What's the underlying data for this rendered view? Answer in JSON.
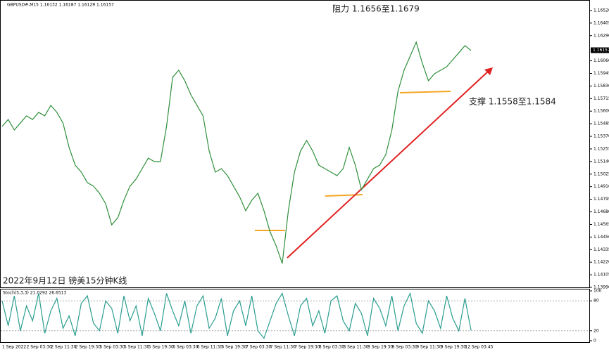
{
  "chart_data": [
    {
      "type": "line",
      "symbol_info": "GBPUSD#,M15 1.16132 1.16187 1.16129 1.16157",
      "annotations": [
        "阻力 1.1656至1.1679",
        "支撑 1.1558至1.1584",
        "2022年9月12日 镑美15分钟K线"
      ],
      "current_price": 1.16157,
      "categories": [
        "1 Sep 2022",
        null,
        null,
        null,
        "2 Sep 03:30",
        null,
        null,
        null,
        "2 Sep 11:30",
        null,
        null,
        null,
        "2 Sep 19:30",
        null,
        null,
        null,
        "5 Sep 03:30",
        null,
        null,
        null,
        "5 Sep 11:30",
        null,
        null,
        null,
        "5 Sep 19:30",
        null,
        null,
        null,
        "6 Sep 03:30",
        null,
        null,
        null,
        "6 Sep 11:30",
        null,
        null,
        null,
        "6 Sep 19:30",
        null,
        null,
        null,
        "7 Sep 03:30",
        null,
        null,
        null,
        "7 Sep 11:30",
        null,
        null,
        null,
        "7 Sep 19:30",
        null,
        null,
        null,
        "8 Sep 03:30",
        null,
        null,
        null,
        "8 Sep 11:30",
        null,
        null,
        null,
        "8 Sep 19:30",
        null,
        null,
        null,
        "9 Sep 03:30",
        null,
        null,
        null,
        "9 Sep 11:30",
        null,
        null,
        null,
        "9 Sep 19:30",
        null,
        null,
        null,
        "12 Sep 03:45",
        null
      ],
      "series": [
        {
          "color": "#2f8f3a",
          "values": [
            1.1546,
            1.15524,
            1.15428,
            1.15492,
            1.15557,
            1.15524,
            1.15589,
            1.15557,
            1.15653,
            1.15589,
            1.15492,
            1.15268,
            1.15107,
            1.15043,
            1.14947,
            1.14915,
            1.1485,
            1.14754,
            1.14561,
            1.14626,
            1.14786,
            1.14915,
            1.14979,
            1.15075,
            1.15171,
            1.15139,
            1.15139,
            1.1546,
            1.1591,
            1.15974,
            1.15878,
            1.15749,
            1.15653,
            1.15557,
            1.15236,
            1.15043,
            1.15075,
            1.15011,
            1.14915,
            1.14818,
            1.1469,
            1.14786,
            1.1485,
            1.1469,
            1.14497,
            1.14369,
            1.14208,
            1.1469,
            1.15043,
            1.15236,
            1.15332,
            1.15236,
            1.15107,
            1.15075,
            1.15043,
            1.15011,
            1.15075,
            1.15268,
            1.15107,
            1.14882,
            1.14979,
            1.15075,
            1.15107,
            1.15203,
            1.15428,
            1.15781,
            1.15974,
            1.16102,
            1.16231,
            1.16038,
            1.15878,
            1.15942,
            1.15974,
            1.16006,
            1.1607,
            1.16134,
            1.16199,
            1.16154
          ]
        }
      ],
      "ylim": [
        1.1399,
        1.16603
      ],
      "yticks": [
        {
          "value": 1.1399,
          "label": "1.13990"
        },
        1.14105,
        {
          "value": 1.1422,
          "label": "1.14220"
        },
        1.14335,
        {
          "value": 1.1445,
          "label": "1.14450"
        },
        1.14565,
        {
          "value": 1.1468,
          "label": "1.14680"
        },
        1.14795,
        {
          "value": 1.1491,
          "label": "1.14910"
        },
        1.15025,
        {
          "value": 1.1514,
          "label": "1.15140"
        },
        1.15255,
        {
          "value": 1.1537,
          "label": "1.15370"
        },
        1.15485,
        {
          "value": 1.156,
          "label": "1.15600"
        },
        1.15715,
        {
          "value": 1.1583,
          "label": "1.15830"
        },
        1.15945,
        {
          "value": 1.1606,
          "label": "1.16060"
        },
        {
          "value": 1.1629,
          "label": "1.16290"
        },
        1.16405,
        {
          "value": 1.1652,
          "label": "1.16520"
        }
      ]
    },
    {
      "type": "line",
      "title": "Stoch(5,3,3) 21.0292 26.6513",
      "series": [
        {
          "color": "#2a9d8f",
          "values": [
            80,
            30,
            90,
            20,
            70,
            40,
            95,
            15,
            60,
            85,
            25,
            50,
            10,
            75,
            90,
            35,
            20,
            80,
            65,
            15,
            90,
            40,
            70,
            10,
            85,
            55,
            20,
            95,
            60,
            30,
            80,
            15,
            70,
            90,
            25,
            45,
            85,
            10,
            60,
            80,
            30,
            90,
            20,
            5,
            40,
            75,
            95,
            50,
            10,
            70,
            85,
            30,
            60,
            15,
            80,
            90,
            40,
            20,
            75,
            55,
            10,
            85,
            65,
            30,
            90,
            20,
            70,
            95,
            35,
            15,
            80,
            60,
            25,
            90,
            45,
            20,
            85,
            21
          ]
        }
      ],
      "ylim": [
        0,
        100
      ],
      "yticks": [
        0,
        20,
        80,
        100
      ]
    }
  ]
}
